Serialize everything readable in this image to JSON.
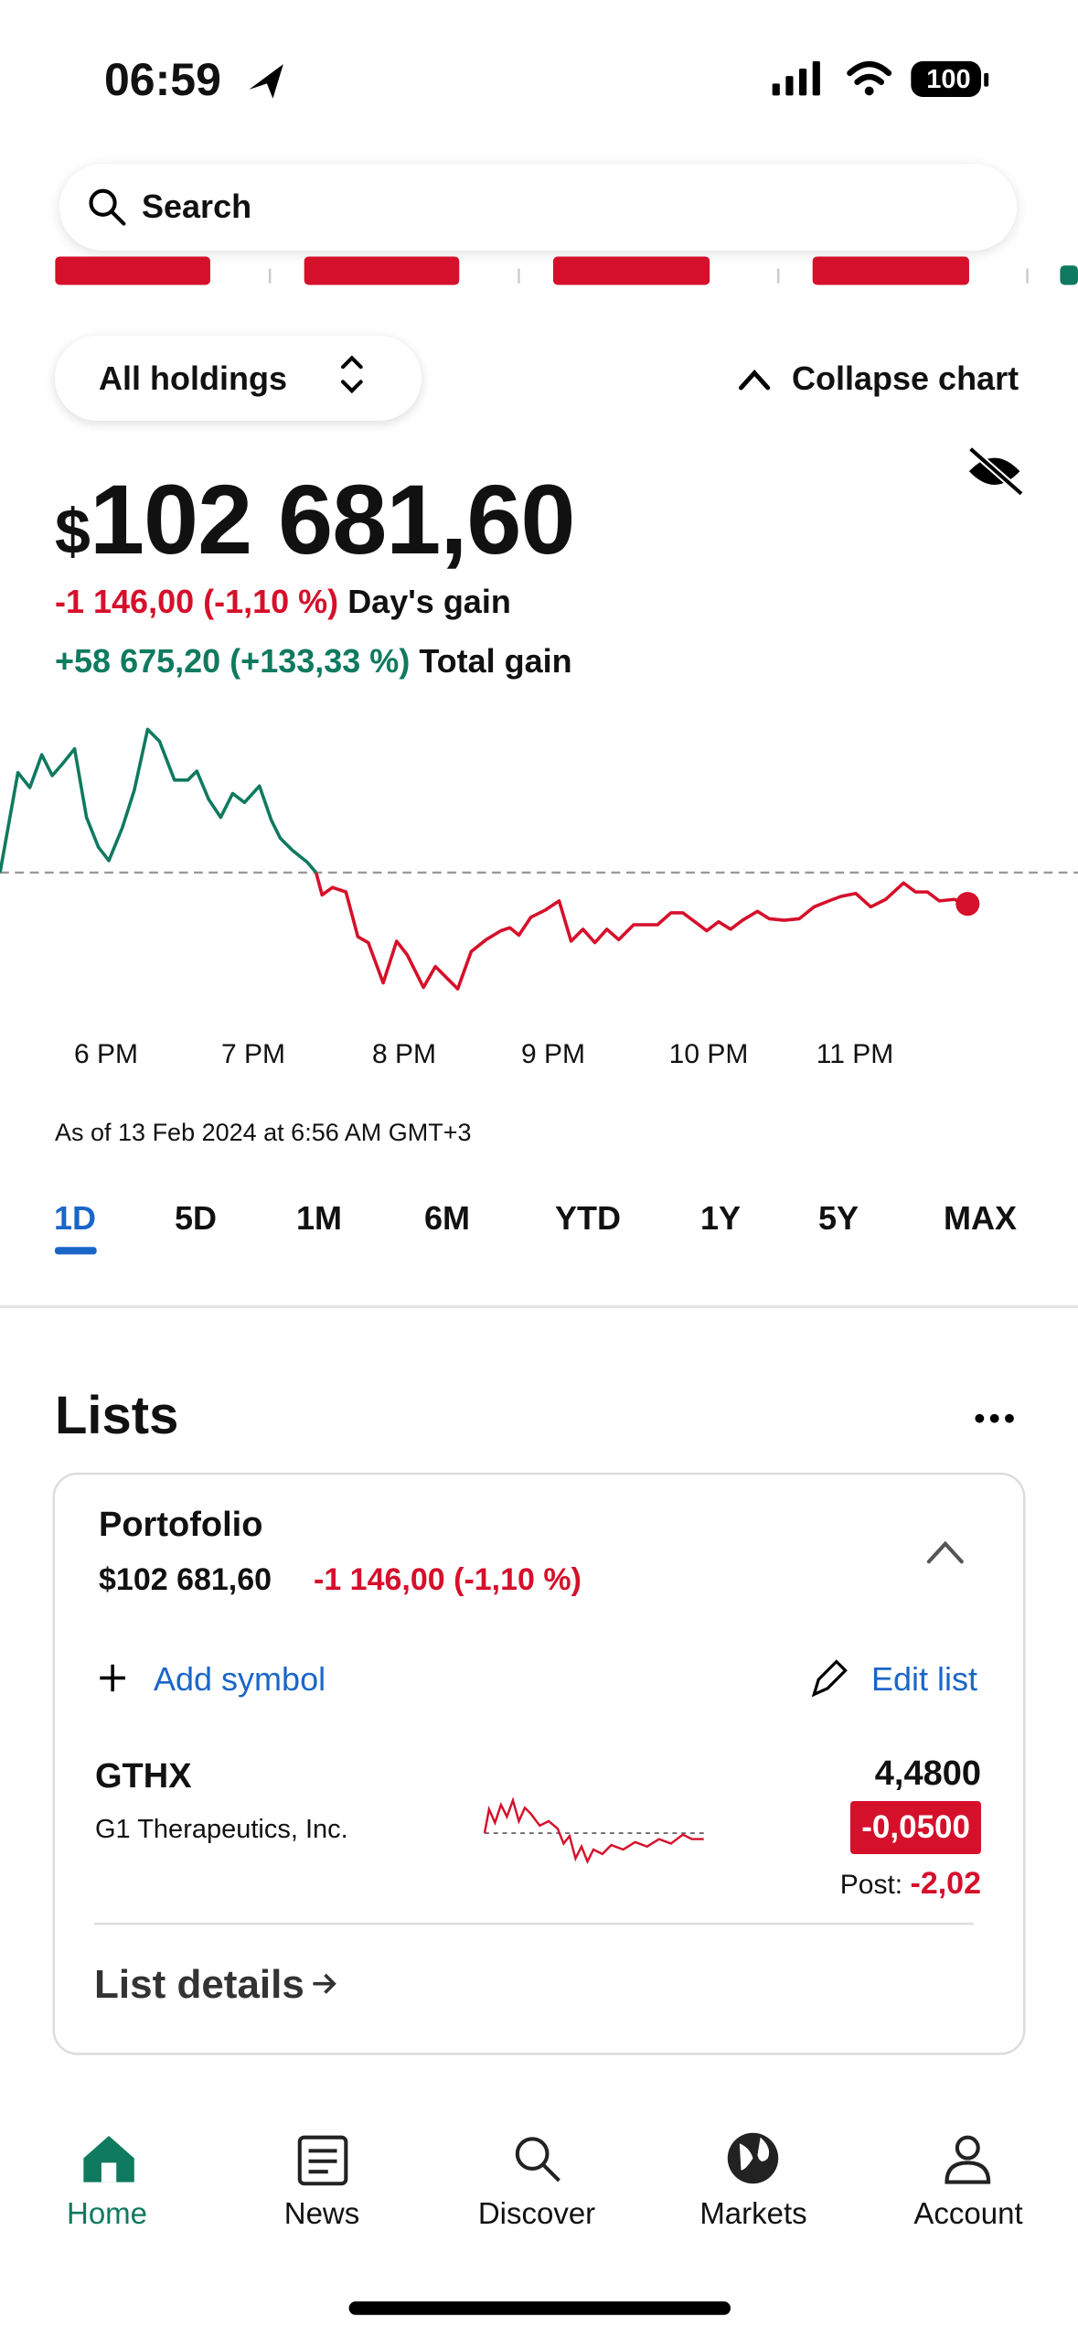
{
  "status_bar": {
    "time": "06:59",
    "battery": "100"
  },
  "search": {
    "placeholder": "Search"
  },
  "holdings": {
    "selector": "All holdings",
    "collapse": "Collapse chart",
    "currency": "$",
    "value": "102 681,60",
    "days_change": "-1 146,00 (-1,10 %)",
    "days_label": "Day's gain",
    "total_change": "+58 675,20 (+133,33 %)",
    "total_label": "Total gain"
  },
  "chart": {
    "x_labels": [
      "6 PM",
      "7 PM",
      "8 PM",
      "9 PM",
      "10 PM",
      "11 PM"
    ],
    "as_of": "As of 13 Feb 2024 at 6:56 AM GMT+3",
    "ranges": [
      "1D",
      "5D",
      "1M",
      "6M",
      "YTD",
      "1Y",
      "5Y",
      "MAX"
    ],
    "selected_range": 0
  },
  "lists": {
    "title": "Lists",
    "portfolio": {
      "name": "Portofolio",
      "value": "$102 681,60",
      "change": "-1 146,00 (-1,10 %)",
      "add_symbol": "Add symbol",
      "edit_list": "Edit list",
      "holdings": [
        {
          "symbol": "GTHX",
          "company": "G1 Therapeutics, Inc.",
          "price": "4,4800",
          "change": "-0,0500",
          "post_label": "Post:",
          "post_change": "-2,02"
        }
      ],
      "details": "List details"
    }
  },
  "tabs": [
    {
      "label": "Home",
      "active": true
    },
    {
      "label": "News",
      "active": false
    },
    {
      "label": "Discover",
      "active": false
    },
    {
      "label": "Markets",
      "active": false
    },
    {
      "label": "Account",
      "active": false
    }
  ]
}
